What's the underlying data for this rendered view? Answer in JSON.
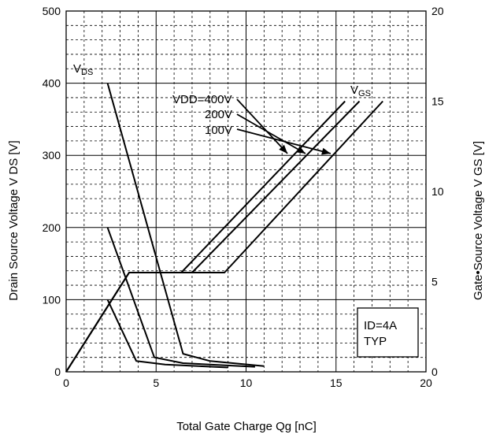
{
  "chart_data": {
    "type": "line",
    "xlabel": "Total Gate Charge   Qg   [nC]",
    "ylabel_left": "Drain Source Voltage   V DS  [V]",
    "ylabel_right": "Gate•Source Voltage   V GS  [V]",
    "xlim": [
      0,
      20
    ],
    "ylim_left": [
      0,
      500
    ],
    "ylim_right": [
      0,
      20
    ],
    "x_ticks": [
      "0",
      "5",
      "10",
      "15",
      "20"
    ],
    "y_ticks_left": [
      "0",
      "100",
      "200",
      "300",
      "400",
      "500"
    ],
    "y_ticks_right": [
      "0",
      "5",
      "10",
      "15",
      "20"
    ],
    "grid": true,
    "annotations": {
      "vds_label": "VDS",
      "vgs_label": "VGS",
      "vdd_400": "VDD=400V",
      "vdd_200": "200V",
      "vdd_100": "100V",
      "box_line1": "ID=4A",
      "box_line2": "TYP"
    },
    "series": [
      {
        "axis": "left",
        "x": [
          2.3,
          6.5,
          8.0,
          11.0
        ],
        "y": [
          400,
          25,
          15,
          8
        ]
      },
      {
        "axis": "left",
        "x": [
          2.3,
          4.9,
          6.5,
          10.5
        ],
        "y": [
          200,
          20,
          12,
          7
        ]
      },
      {
        "axis": "left",
        "x": [
          2.3,
          3.9,
          5.5,
          9.0
        ],
        "y": [
          100,
          15,
          10,
          6
        ]
      },
      {
        "axis": "right",
        "x": [
          0,
          3.5,
          6.4,
          15.5
        ],
        "y": [
          0,
          5.5,
          5.5,
          15
        ]
      },
      {
        "axis": "right",
        "x": [
          0,
          3.5,
          7.0,
          16.3
        ],
        "y": [
          0,
          5.5,
          5.5,
          15
        ]
      },
      {
        "axis": "right",
        "x": [
          0,
          3.5,
          8.8,
          17.6
        ],
        "y": [
          0,
          5.5,
          5.5,
          15
        ]
      }
    ]
  }
}
